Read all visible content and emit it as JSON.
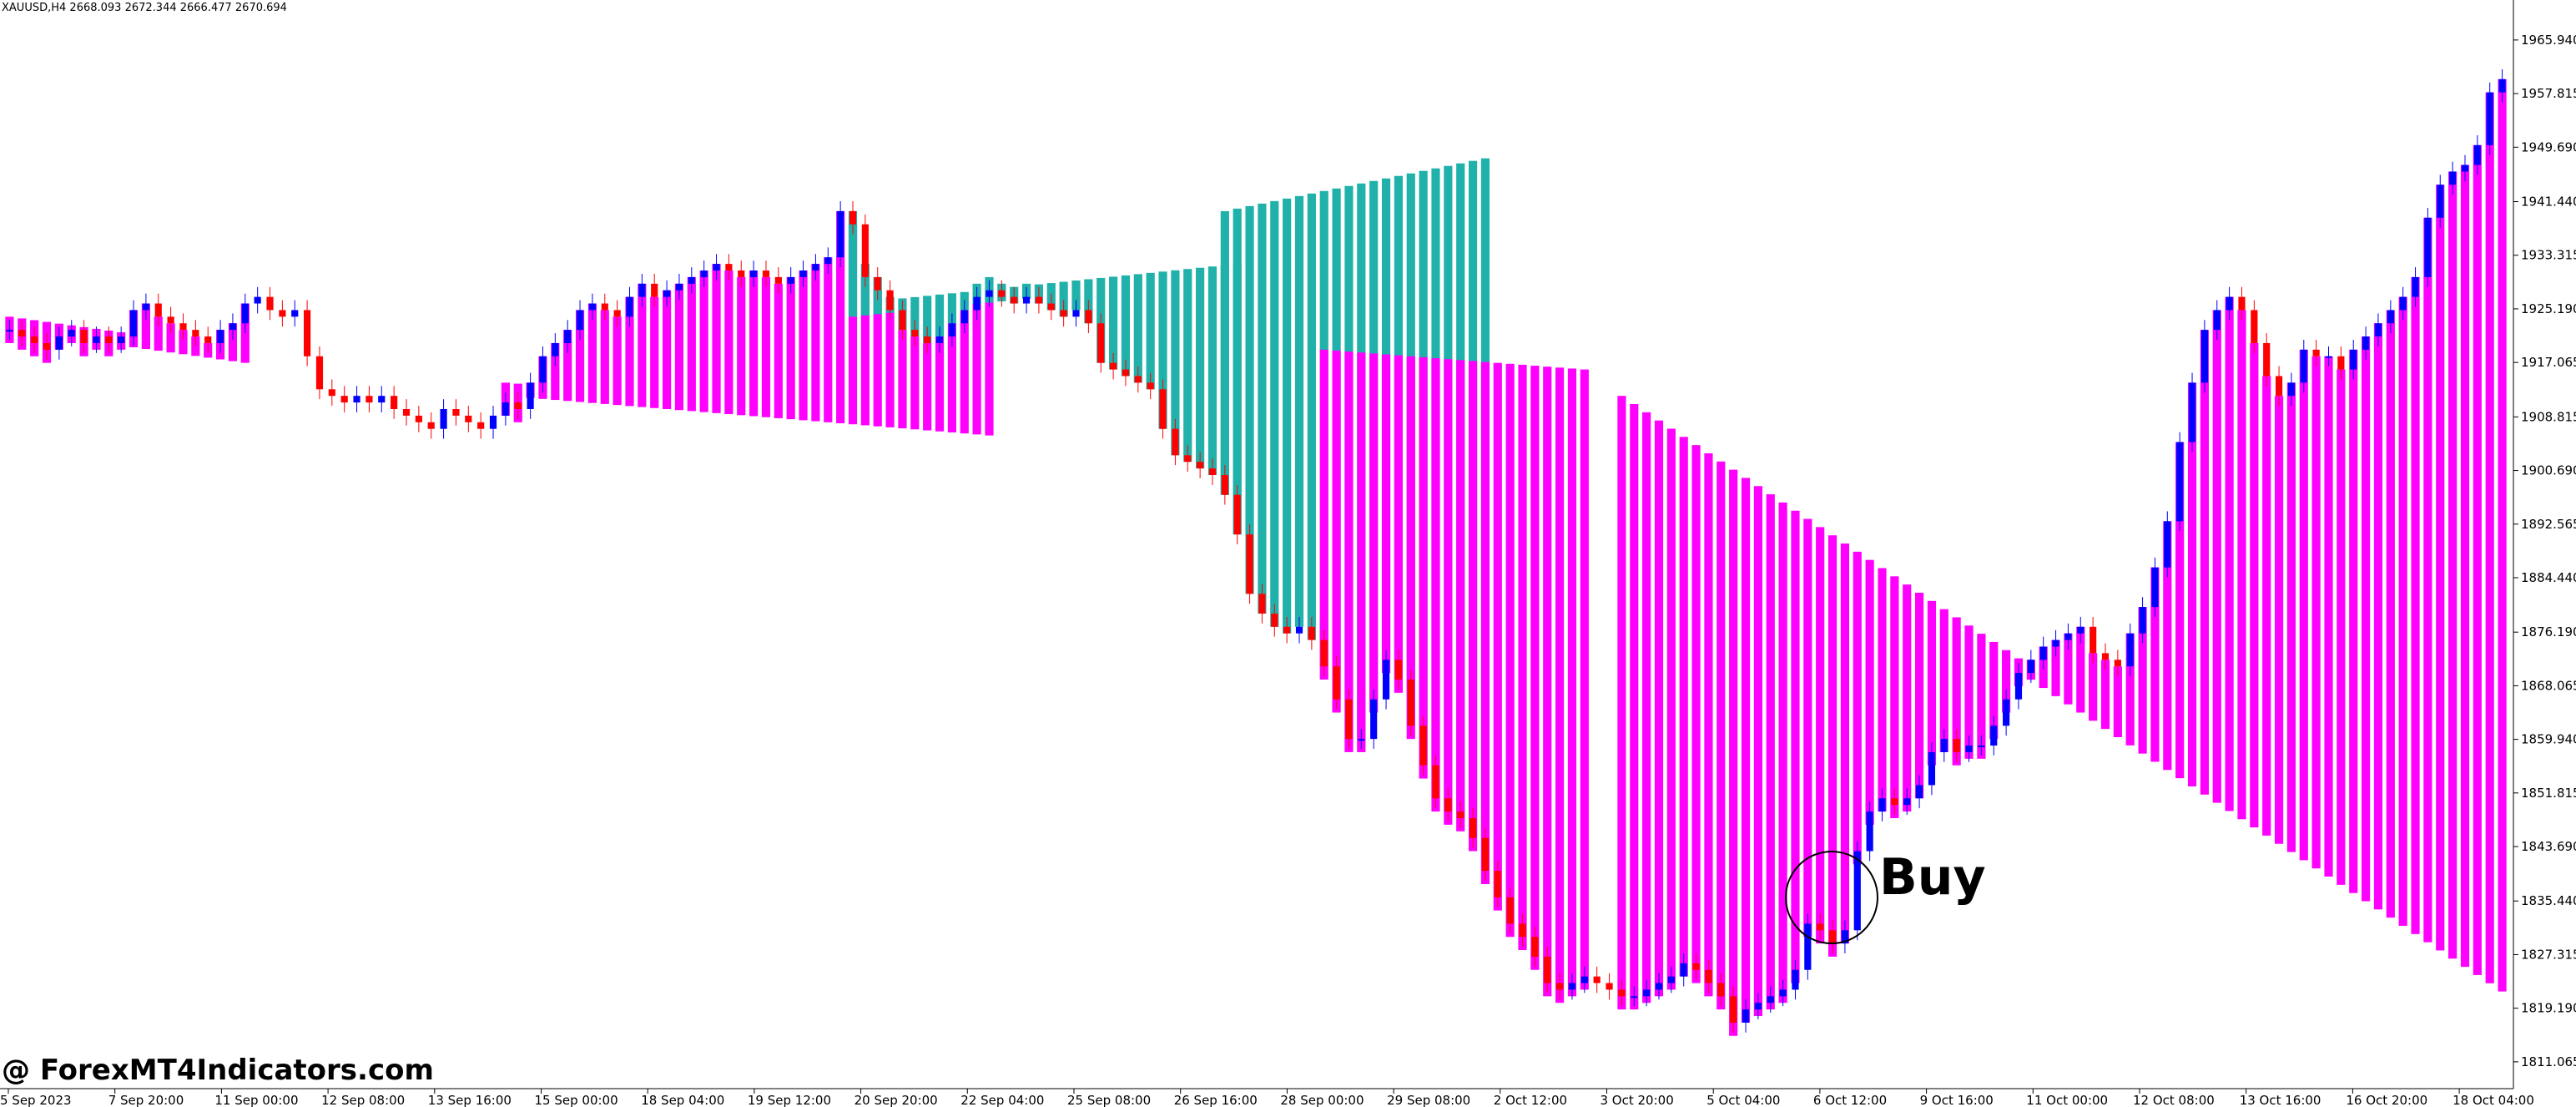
{
  "header": {
    "symbol_timeframe": "XAUUSD,H4",
    "ohlc": "2668.093 2672.344 2666.477 2670.694"
  },
  "watermark": "@ ForexMT4Indicators.com",
  "annotation": {
    "label": "Buy"
  },
  "colors": {
    "bull_candle": "#0000ff",
    "bear_candle": "#ff0000",
    "up_histogram": "#20b2aa",
    "down_histogram": "#ff00ff",
    "grid_axis": "#000000"
  },
  "chart_data": {
    "type": "candlestick",
    "symbol": "XAUUSD",
    "timeframe": "H4",
    "ylim": [
      1807,
      1972
    ],
    "y_ticks": [
      1965.94,
      1957.815,
      1949.69,
      1941.44,
      1933.315,
      1925.19,
      1917.065,
      1908.815,
      1900.69,
      1892.565,
      1884.44,
      1876.19,
      1868.065,
      1859.94,
      1851.815,
      1843.69,
      1835.44,
      1827.315,
      1819.19,
      1811.065
    ],
    "x_ticks": [
      "5 Sep 2023",
      "7 Sep 20:00",
      "11 Sep 00:00",
      "12 Sep 08:00",
      "13 Sep 16:00",
      "15 Sep 00:00",
      "18 Sep 04:00",
      "19 Sep 12:00",
      "20 Sep 20:00",
      "22 Sep 04:00",
      "25 Sep 08:00",
      "26 Sep 16:00",
      "28 Sep 00:00",
      "29 Sep 08:00",
      "2 Oct 12:00",
      "3 Oct 20:00",
      "5 Oct 04:00",
      "6 Oct 12:00",
      "9 Oct 16:00",
      "11 Oct 00:00",
      "12 Oct 08:00",
      "13 Oct 16:00",
      "16 Oct 20:00",
      "18 Oct 04:00"
    ],
    "close_path": [
      1922,
      1921,
      1920,
      1919,
      1921,
      1922,
      1920,
      1921,
      1920,
      1921,
      1925,
      1926,
      1924,
      1923,
      1922,
      1921,
      1920,
      1922,
      1923,
      1926,
      1927,
      1925,
      1924,
      1925,
      1918,
      1913,
      1912,
      1911,
      1912,
      1911,
      1912,
      1910,
      1909,
      1908,
      1907,
      1910,
      1909,
      1908,
      1907,
      1909,
      1911,
      1910,
      1914,
      1918,
      1920,
      1922,
      1925,
      1926,
      1925,
      1924,
      1927,
      1929,
      1927,
      1928,
      1929,
      1930,
      1931,
      1932,
      1931,
      1930,
      1931,
      1930,
      1929,
      1930,
      1931,
      1932,
      1933,
      1940,
      1938,
      1930,
      1928,
      1925,
      1922,
      1921,
      1920,
      1921,
      1923,
      1925,
      1927,
      1928,
      1927,
      1926,
      1927,
      1926,
      1925,
      1924,
      1925,
      1923,
      1917,
      1916,
      1915,
      1914,
      1913,
      1907,
      1903,
      1902,
      1901,
      1900,
      1897,
      1891,
      1882,
      1879,
      1877,
      1876,
      1877,
      1875,
      1871,
      1866,
      1860,
      1860,
      1866,
      1872,
      1869,
      1862,
      1856,
      1851,
      1849,
      1848,
      1845,
      1840,
      1836,
      1832,
      1830,
      1827,
      1823,
      1822,
      1823,
      1824,
      1823,
      1822,
      1821,
      1821,
      1822,
      1823,
      1824,
      1826,
      1825,
      1823,
      1821,
      1817,
      1819,
      1820,
      1821,
      1822,
      1825,
      1832,
      1831,
      1829,
      1831,
      1843,
      1849,
      1851,
      1850,
      1851,
      1853,
      1858,
      1860,
      1858,
      1859,
      1859,
      1862,
      1866,
      1870,
      1872,
      1874,
      1875,
      1876,
      1877,
      1873,
      1872,
      1871,
      1876,
      1880,
      1886,
      1893,
      1905,
      1914,
      1922,
      1925,
      1927,
      1925,
      1920,
      1915,
      1912,
      1914,
      1919,
      1918,
      1918,
      1916,
      1919,
      1921,
      1923,
      1925,
      1927,
      1930,
      1939,
      1944,
      1946,
      1947,
      1950,
      1958,
      1960
    ],
    "histogram_segments": [
      {
        "trend": "down",
        "from": 1922,
        "to": 1917,
        "start": 0,
        "end": 20
      },
      {
        "trend": "down",
        "from": 1912,
        "to": 1906,
        "start": 40,
        "end": 80
      },
      {
        "trend": "up",
        "from": 1926,
        "to": 1932,
        "start": 68,
        "end": 100
      },
      {
        "trend": "up",
        "from": 1940,
        "to": 1948,
        "start": 98,
        "end": 120
      },
      {
        "trend": "down",
        "from": 1917,
        "to": 1914,
        "start": 106,
        "end": 128
      },
      {
        "trend": "down",
        "from": 1910,
        "to": 1818,
        "start": 130,
        "end": 205
      },
      {
        "trend": "down",
        "from": 1812,
        "to": 1810,
        "start": 206,
        "end": 236
      },
      {
        "trend": "up",
        "from": 1834,
        "to": 1932,
        "start": 216,
        "end": 292
      }
    ],
    "annotations": [
      {
        "text": "Buy",
        "at_date": "6 Oct 12:00",
        "price": 1834
      }
    ]
  }
}
